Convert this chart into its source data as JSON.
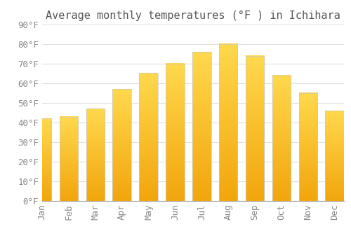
{
  "title": "Average monthly temperatures (°F ) in Ichihara",
  "months": [
    "Jan",
    "Feb",
    "Mar",
    "Apr",
    "May",
    "Jun",
    "Jul",
    "Aug",
    "Sep",
    "Oct",
    "Nov",
    "Dec"
  ],
  "values": [
    42,
    43,
    47,
    57,
    65,
    70,
    76,
    80,
    74,
    64,
    55,
    46
  ],
  "bar_color_top": "#F5A800",
  "bar_color_bottom": "#FFD966",
  "bar_edge_color": "#C8C8C8",
  "background_color": "#FFFFFF",
  "plot_bg_color": "#FFFFFF",
  "grid_color": "#E0E0E0",
  "ylim": [
    0,
    90
  ],
  "yticks": [
    0,
    10,
    20,
    30,
    40,
    50,
    60,
    70,
    80,
    90
  ],
  "title_fontsize": 11,
  "tick_fontsize": 9,
  "font_color": "#888888",
  "title_color": "#555555"
}
